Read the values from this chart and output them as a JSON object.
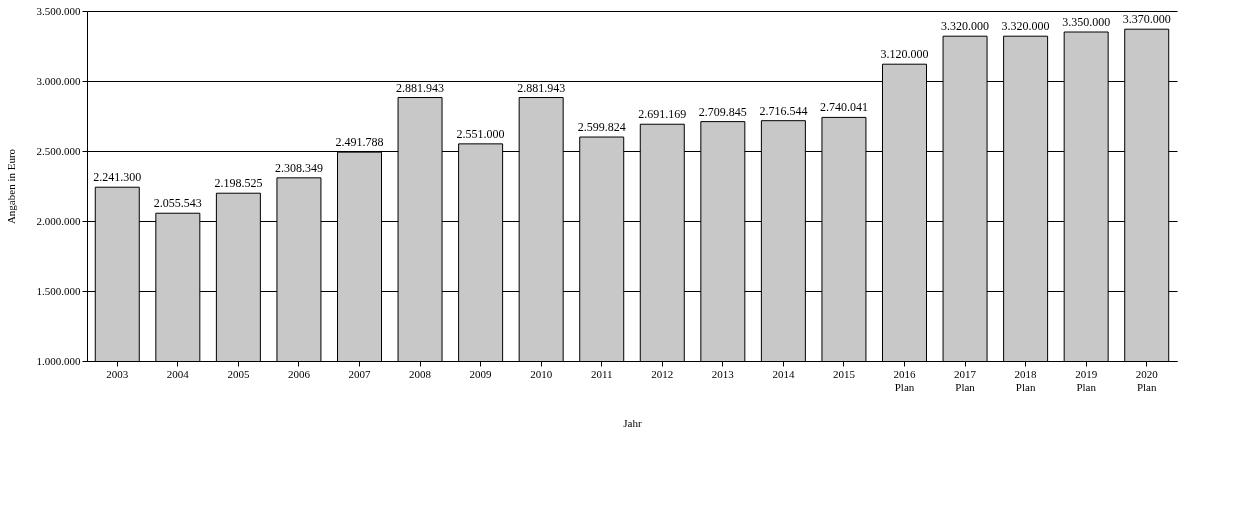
{
  "chart_data": {
    "type": "bar",
    "xlabel": "Jahr",
    "ylabel": "Angaben in Euro",
    "categories": [
      "2003",
      "2004",
      "2005",
      "2006",
      "2007",
      "2008",
      "2009",
      "2010",
      "2011",
      "2012",
      "2013",
      "2014",
      "2015",
      "2016 Plan",
      "2017 Plan",
      "2018 Plan",
      "2019 Plan",
      "2020 Plan"
    ],
    "values": [
      2241300,
      2055543,
      2198525,
      2308349,
      2491788,
      2881943,
      2551000,
      2881943,
      2599824,
      2691169,
      2709845,
      2716544,
      2740041,
      3120000,
      3320000,
      3320000,
      3350000,
      3370000
    ],
    "value_labels": [
      "2.241.300",
      "2.055.543",
      "2.198.525",
      "2.308.349",
      "2.491.788",
      "2.881.943",
      "2.551.000",
      "2.881.943",
      "2.599.824",
      "2.691.169",
      "2.709.845",
      "2.716.544",
      "2.740.041",
      "3.120.000",
      "3.320.000",
      "3.320.000",
      "3.350.000",
      "3.370.000"
    ],
    "color": "#c8c8c8",
    "ylim": [
      1000000,
      3500000
    ],
    "yticks": [
      {
        "value": 1000000,
        "label": "1.000.000"
      },
      {
        "value": 1500000,
        "label": "1.500.000"
      },
      {
        "value": 2000000,
        "label": "2.000.000"
      },
      {
        "value": 2500000,
        "label": "2.500.000"
      },
      {
        "value": 3000000,
        "label": "3.000.000"
      },
      {
        "value": 3500000,
        "label": "3.500.000"
      }
    ],
    "grid": "y"
  }
}
